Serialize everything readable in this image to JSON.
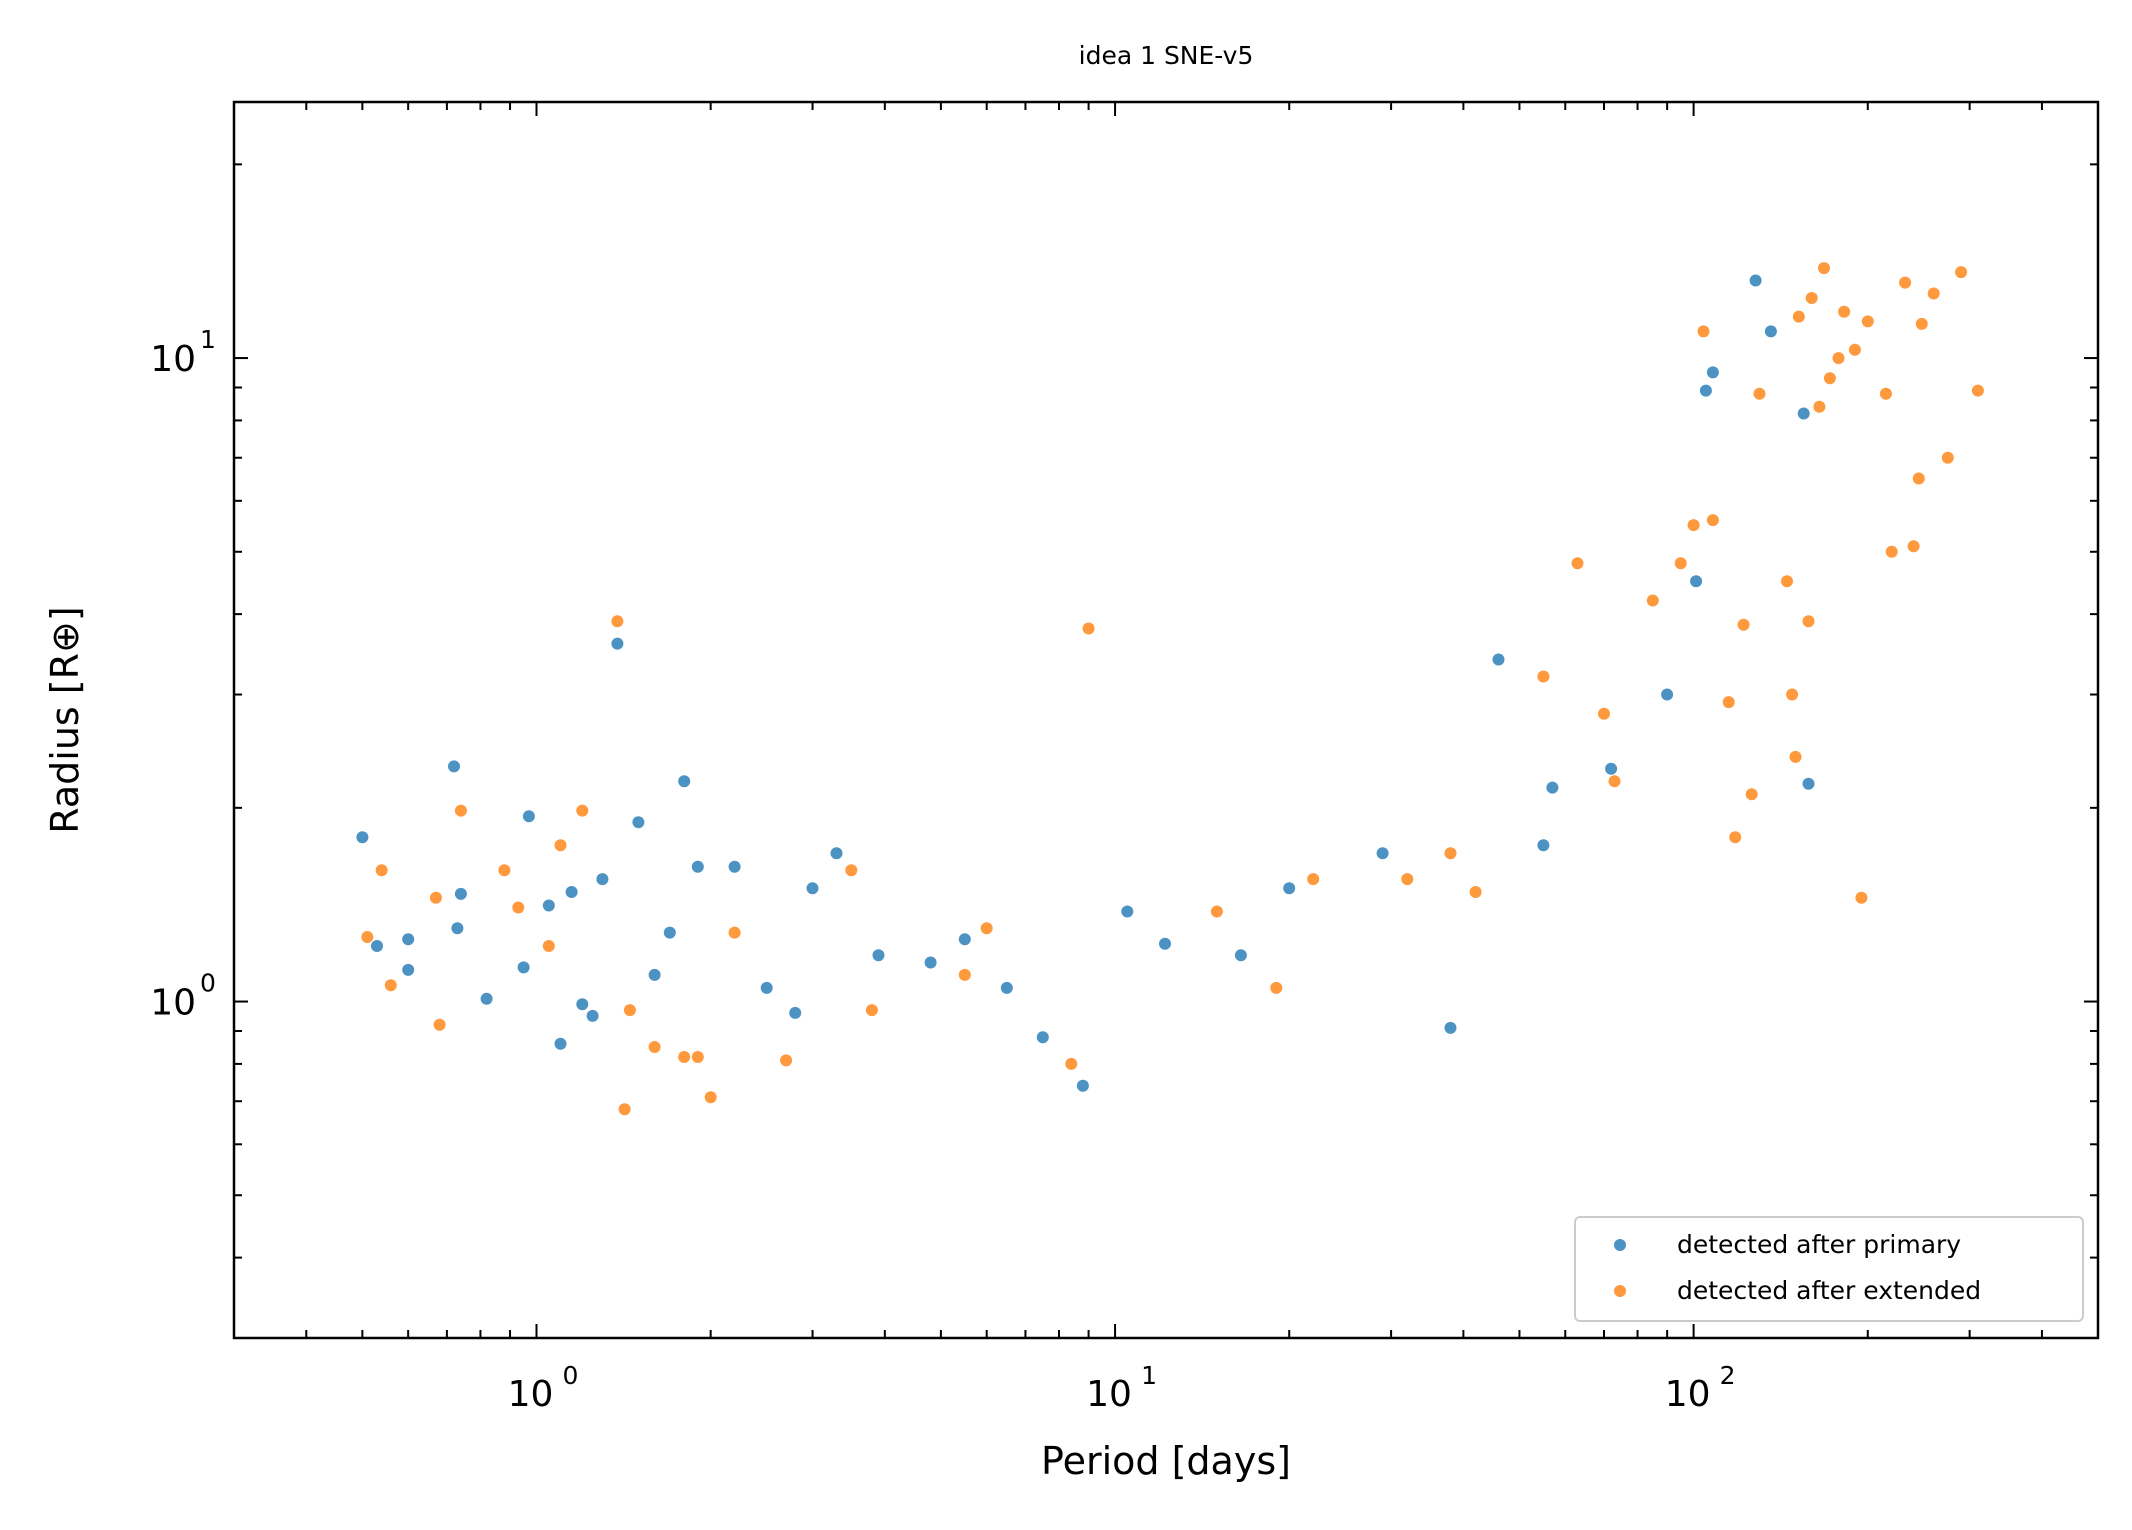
{
  "chart_data": {
    "type": "scatter",
    "title": "idea 1 SNE-v5",
    "xlabel": "Period [days]",
    "ylabel": "Radius [R⊕]",
    "x_scale": "log",
    "y_scale": "log",
    "xlim": [
      0.3,
      500
    ],
    "ylim": [
      0.3,
      25
    ],
    "x_ticks": [
      {
        "value": 1,
        "label": "10",
        "exp": "0"
      },
      {
        "value": 10,
        "label": "10",
        "exp": "1"
      },
      {
        "value": 100,
        "label": "10",
        "exp": "2"
      }
    ],
    "y_ticks": [
      {
        "value": 1,
        "label": "10",
        "exp": "0"
      },
      {
        "value": 10,
        "label": "10",
        "exp": "1"
      }
    ],
    "grid": false,
    "legend_position": "bottom-right",
    "colors": {
      "primary": "#1f77b4",
      "extended": "#ff7f0e"
    },
    "series": [
      {
        "name": "detected after primary",
        "color": "#1f77b4",
        "points": [
          [
            0.5,
            1.8
          ],
          [
            0.53,
            1.22
          ],
          [
            0.6,
            1.12
          ],
          [
            0.6,
            1.25
          ],
          [
            0.72,
            2.32
          ],
          [
            0.73,
            1.3
          ],
          [
            0.74,
            1.47
          ],
          [
            0.82,
            1.01
          ],
          [
            0.95,
            1.13
          ],
          [
            0.97,
            1.94
          ],
          [
            1.05,
            1.41
          ],
          [
            1.1,
            0.86
          ],
          [
            1.15,
            1.48
          ],
          [
            1.2,
            0.99
          ],
          [
            1.25,
            0.95
          ],
          [
            1.3,
            1.55
          ],
          [
            1.38,
            3.6
          ],
          [
            1.5,
            1.9
          ],
          [
            1.6,
            1.1
          ],
          [
            1.7,
            1.28
          ],
          [
            1.8,
            2.2
          ],
          [
            1.9,
            1.62
          ],
          [
            2.2,
            1.62
          ],
          [
            2.5,
            1.05
          ],
          [
            2.8,
            0.96
          ],
          [
            3.0,
            1.5
          ],
          [
            3.3,
            1.7
          ],
          [
            3.9,
            1.18
          ],
          [
            4.8,
            1.15
          ],
          [
            5.5,
            1.25
          ],
          [
            6.5,
            1.05
          ],
          [
            7.5,
            0.88
          ],
          [
            8.8,
            0.74
          ],
          [
            10.5,
            1.38
          ],
          [
            12.2,
            1.23
          ],
          [
            16.5,
            1.18
          ],
          [
            20.0,
            1.5
          ],
          [
            29.0,
            1.7
          ],
          [
            38.0,
            0.91
          ],
          [
            46.0,
            3.4
          ],
          [
            55.0,
            1.75
          ],
          [
            57.0,
            2.15
          ],
          [
            72.0,
            2.3
          ],
          [
            90.0,
            3.0
          ],
          [
            101.0,
            4.5
          ],
          [
            105.0,
            8.9
          ],
          [
            108.0,
            9.5
          ],
          [
            128.0,
            13.2
          ],
          [
            136.0,
            11.0
          ],
          [
            155.0,
            8.2
          ],
          [
            158.0,
            2.18
          ]
        ]
      },
      {
        "name": "detected after extended",
        "color": "#ff7f0e",
        "points": [
          [
            0.51,
            1.26
          ],
          [
            0.54,
            1.6
          ],
          [
            0.56,
            1.06
          ],
          [
            0.67,
            1.45
          ],
          [
            0.68,
            0.92
          ],
          [
            0.74,
            1.98
          ],
          [
            0.88,
            1.6
          ],
          [
            0.93,
            1.4
          ],
          [
            1.05,
            1.22
          ],
          [
            1.1,
            1.75
          ],
          [
            1.2,
            1.98
          ],
          [
            1.38,
            3.9
          ],
          [
            1.42,
            0.68
          ],
          [
            1.45,
            0.97
          ],
          [
            1.6,
            0.85
          ],
          [
            1.8,
            0.82
          ],
          [
            1.9,
            0.82
          ],
          [
            2.0,
            0.71
          ],
          [
            2.2,
            1.28
          ],
          [
            2.7,
            0.81
          ],
          [
            3.5,
            1.6
          ],
          [
            3.8,
            0.97
          ],
          [
            5.5,
            1.1
          ],
          [
            6.0,
            1.3
          ],
          [
            8.4,
            0.8
          ],
          [
            9.0,
            3.8
          ],
          [
            15.0,
            1.38
          ],
          [
            19.0,
            1.05
          ],
          [
            22.0,
            1.55
          ],
          [
            32.0,
            1.55
          ],
          [
            38.0,
            1.7
          ],
          [
            42.0,
            1.48
          ],
          [
            55.0,
            3.2
          ],
          [
            63.0,
            4.8
          ],
          [
            70.0,
            2.8
          ],
          [
            73.0,
            2.2
          ],
          [
            85.0,
            4.2
          ],
          [
            95.0,
            4.8
          ],
          [
            100.0,
            5.5
          ],
          [
            104.0,
            11.0
          ],
          [
            108.0,
            5.6
          ],
          [
            115.0,
            2.92
          ],
          [
            118.0,
            1.8
          ],
          [
            122.0,
            3.85
          ],
          [
            126.0,
            2.1
          ],
          [
            130.0,
            8.8
          ],
          [
            145.0,
            4.5
          ],
          [
            148.0,
            3.0
          ],
          [
            150.0,
            2.4
          ],
          [
            158.0,
            3.9
          ],
          [
            152.0,
            11.6
          ],
          [
            160.0,
            12.4
          ],
          [
            165.0,
            8.4
          ],
          [
            172.0,
            9.3
          ],
          [
            178.0,
            10.0
          ],
          [
            182.0,
            11.8
          ],
          [
            190.0,
            10.3
          ],
          [
            200.0,
            11.4
          ],
          [
            215.0,
            8.8
          ],
          [
            220.0,
            5.0
          ],
          [
            232.0,
            13.1
          ],
          [
            245.0,
            6.5
          ],
          [
            248.0,
            11.3
          ],
          [
            260.0,
            12.6
          ],
          [
            275.0,
            7.0
          ],
          [
            290.0,
            13.6
          ],
          [
            310.0,
            8.9
          ],
          [
            195.0,
            1.45
          ],
          [
            240.0,
            5.1
          ],
          [
            168.0,
            13.8
          ]
        ]
      }
    ]
  }
}
